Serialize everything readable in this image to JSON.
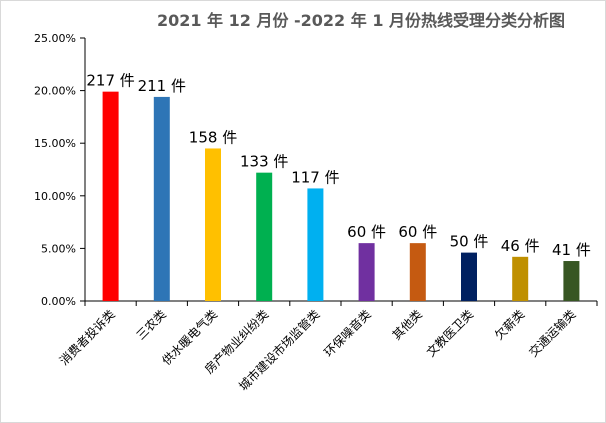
{
  "chart_data": {
    "type": "bar",
    "title": "2021 年 12 月份 -2022 年 1 月份热线受理分类分析图",
    "xlabel": "",
    "ylabel": "",
    "ylim": [
      0,
      0.25
    ],
    "y_ticks": [
      "0.00%",
      "5.00%",
      "10.00%",
      "15.00%",
      "20.00%",
      "25.00%"
    ],
    "grid": false,
    "legend": "none",
    "categories": [
      "消费者投诉类",
      "三农类",
      "供水暖电气类",
      "房产物业纠纷类",
      "城市建设市场监管类",
      "环保噪音类",
      "其他类",
      "文教医卫类",
      "欠薪类",
      "交通运输类"
    ],
    "values": [
      0.199,
      0.194,
      0.145,
      0.122,
      0.107,
      0.055,
      0.055,
      0.046,
      0.042,
      0.038
    ],
    "data_labels": [
      "217 件",
      "211 件",
      "158 件",
      "133 件",
      "117 件",
      "60 件",
      "60 件",
      "50 件",
      "46 件",
      "41 件"
    ],
    "colors": [
      "#ff0000",
      "#2e75b6",
      "#ffc000",
      "#00b050",
      "#00b0f0",
      "#7030a0",
      "#c55a11",
      "#002060",
      "#bf9000",
      "#375623"
    ]
  }
}
